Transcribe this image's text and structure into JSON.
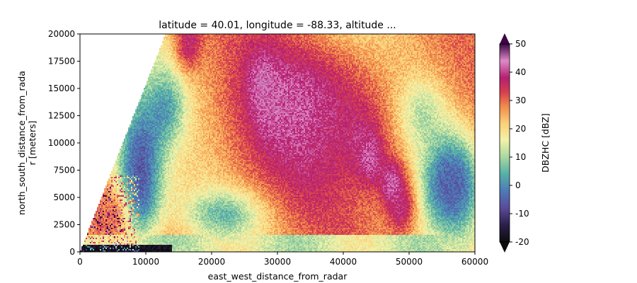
{
  "chart_data": {
    "type": "heatmap",
    "title": "latitude = 40.01, longitude = -88.33, altitude ...",
    "xlabel": "east_west_distance_from_radar",
    "ylabel_line1": "north_south_distance_from_rada",
    "ylabel_line2": "r [meters]",
    "xlim": [
      0,
      60000
    ],
    "ylim": [
      0,
      20000
    ],
    "x_ticks": [
      0,
      10000,
      20000,
      30000,
      40000,
      50000,
      60000
    ],
    "y_ticks": [
      0,
      2500,
      5000,
      7500,
      10000,
      12500,
      15000,
      17500,
      20000
    ],
    "colorbar": {
      "label": "DBZHC [dBZ]",
      "range": [
        -20,
        50
      ],
      "ticks": [
        -20,
        -10,
        0,
        10,
        20,
        30,
        40,
        50
      ],
      "extend": "both",
      "colormap": "pyart_HomeyerRainbow-like",
      "color_stops": [
        {
          "value": -20,
          "color": "#0d0d0d"
        },
        {
          "value": -14,
          "color": "#2b1f4a"
        },
        {
          "value": -8,
          "color": "#5b4a9a"
        },
        {
          "value": -2,
          "color": "#4d7ab8"
        },
        {
          "value": 4,
          "color": "#56b0a8"
        },
        {
          "value": 10,
          "color": "#a8d8a0"
        },
        {
          "value": 16,
          "color": "#f3f2a8"
        },
        {
          "value": 22,
          "color": "#fbcf78"
        },
        {
          "value": 28,
          "color": "#f08a4a"
        },
        {
          "value": 33,
          "color": "#d63e4f"
        },
        {
          "value": 38,
          "color": "#b51f70"
        },
        {
          "value": 44,
          "color": "#dd8ac8"
        },
        {
          "value": 50,
          "color": "#3d0645"
        }
      ]
    },
    "coverage_boundary": {
      "description": "radar wedge: no data left of line from (0,0) to (13000,20000)",
      "line": [
        [
          0,
          0
        ],
        [
          13000,
          20000
        ]
      ]
    },
    "field_features": [
      {
        "name": "core-upper-1",
        "x": 27800,
        "y": 15500,
        "value": 44
      },
      {
        "name": "core-upper-2",
        "x": 29000,
        "y": 13000,
        "value": 42
      },
      {
        "name": "core-lower-1",
        "x": 44000,
        "y": 8600,
        "value": 43
      },
      {
        "name": "core-lower-2",
        "x": 47500,
        "y": 6200,
        "value": 46
      },
      {
        "name": "core-lower-3",
        "x": 49000,
        "y": 4000,
        "value": 40
      },
      {
        "name": "core-top",
        "x": 16500,
        "y": 19200,
        "value": 40
      },
      {
        "name": "weak-left",
        "x": 8000,
        "y": 5000,
        "value": -12
      },
      {
        "name": "weak-east",
        "x": 56000,
        "y": 6000,
        "value": -5
      },
      {
        "name": "ground-clutter",
        "x": 5000,
        "y": 3500,
        "value": 32
      }
    ]
  }
}
